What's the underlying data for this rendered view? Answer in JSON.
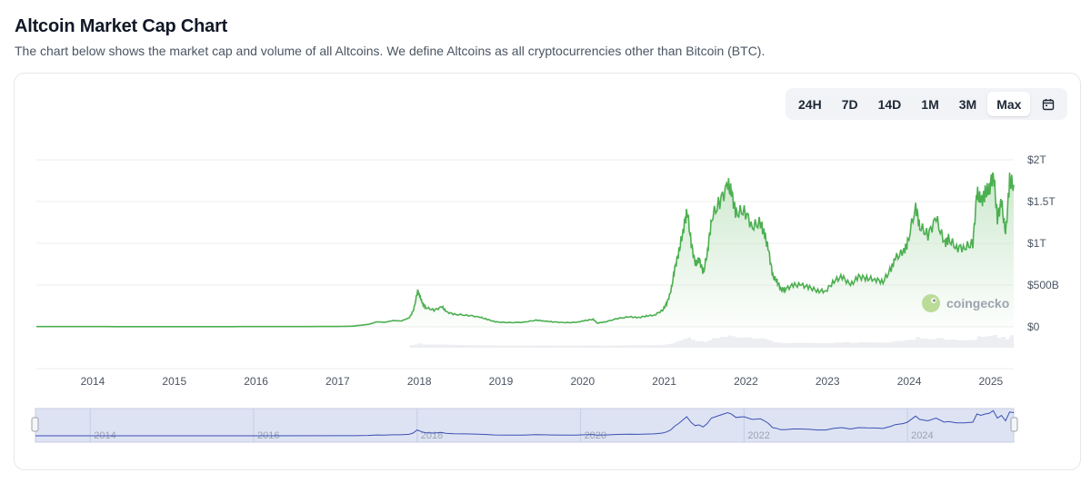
{
  "header": {
    "title": "Altcoin Market Cap Chart",
    "subtitle": "The chart below shows the market cap and volume of all Altcoins. We define Altcoins as all cryptocurrencies other than Bitcoin (BTC)."
  },
  "range_selector": {
    "options": [
      "24H",
      "7D",
      "14D",
      "1M",
      "3M",
      "Max"
    ],
    "selected": "Max"
  },
  "watermark": "coingecko",
  "colors": {
    "line": "#4caf50",
    "area_top": "#c8e6c9",
    "navigator_bg": "#dde3f3",
    "navigator_line": "#3c4fb3",
    "grid": "#ececec",
    "axis_text": "#4b5563"
  },
  "chart_data": {
    "type": "area",
    "title": "",
    "xlabel": "",
    "ylabel": "",
    "y_tick_labels": [
      "$0",
      "$500B",
      "$1T",
      "$1.5T",
      "$2T"
    ],
    "y_ticks": [
      0,
      500,
      1000,
      1500,
      2000
    ],
    "y_unit": "billion USD",
    "ylim": [
      0,
      2000
    ],
    "x_tick_labels": [
      "2014",
      "2015",
      "2016",
      "2017",
      "2018",
      "2019",
      "2020",
      "2021",
      "2022",
      "2023",
      "2024",
      "2025"
    ],
    "x_ticks": [
      2014,
      2015,
      2016,
      2017,
      2018,
      2019,
      2020,
      2021,
      2022,
      2023,
      2024,
      2025
    ],
    "xlim": [
      2013.33,
      2025.3
    ],
    "grid": true,
    "series": [
      {
        "x": [
          2013.33,
          2014.0,
          2015.0,
          2016.0,
          2017.0,
          2017.2,
          2017.4,
          2017.5,
          2017.6,
          2017.7,
          2017.8,
          2017.9,
          2017.95,
          2018.0,
          2018.03,
          2018.06,
          2018.1,
          2018.2,
          2018.3,
          2018.35,
          2018.45,
          2018.6,
          2018.75,
          2018.85,
          2018.95,
          2019.1,
          2019.3,
          2019.45,
          2019.55,
          2019.65,
          2019.8,
          2019.95,
          2020.05,
          2020.15,
          2020.2,
          2020.3,
          2020.45,
          2020.6,
          2020.7,
          2020.8,
          2020.9,
          2021.0,
          2021.05,
          2021.1,
          2021.15,
          2021.2,
          2021.25,
          2021.3,
          2021.35,
          2021.4,
          2021.45,
          2021.5,
          2021.55,
          2021.6,
          2021.7,
          2021.8,
          2021.85,
          2021.9,
          2022.0,
          2022.1,
          2022.2,
          2022.25,
          2022.3,
          2022.35,
          2022.4,
          2022.45,
          2022.5,
          2022.6,
          2022.7,
          2022.8,
          2022.9,
          2023.0,
          2023.1,
          2023.2,
          2023.3,
          2023.4,
          2023.5,
          2023.6,
          2023.7,
          2023.8,
          2023.85,
          2023.95,
          2024.0,
          2024.1,
          2024.15,
          2024.25,
          2024.35,
          2024.45,
          2024.5,
          2024.6,
          2024.7,
          2024.8,
          2024.85,
          2024.9,
          2024.95,
          2025.0,
          2025.05,
          2025.1,
          2025.15,
          2025.2,
          2025.25,
          2025.3
        ],
        "y": [
          3,
          3,
          2,
          3,
          4,
          8,
          30,
          60,
          55,
          75,
          70,
          110,
          200,
          430,
          360,
          280,
          230,
          200,
          240,
          180,
          150,
          140,
          120,
          90,
          60,
          50,
          55,
          80,
          70,
          60,
          50,
          55,
          75,
          90,
          45,
          60,
          100,
          120,
          110,
          130,
          140,
          200,
          280,
          420,
          700,
          900,
          1150,
          1400,
          1000,
          750,
          800,
          650,
          900,
          1300,
          1500,
          1700,
          1580,
          1350,
          1400,
          1200,
          1250,
          1100,
          900,
          600,
          550,
          450,
          450,
          500,
          500,
          470,
          430,
          430,
          550,
          600,
          500,
          600,
          580,
          570,
          540,
          700,
          820,
          900,
          1000,
          1450,
          1200,
          1100,
          1300,
          1000,
          1050,
          950,
          950,
          1000,
          1600,
          1500,
          1600,
          1650,
          1850,
          1300,
          1500,
          1100,
          1750,
          1700
        ]
      }
    ]
  }
}
